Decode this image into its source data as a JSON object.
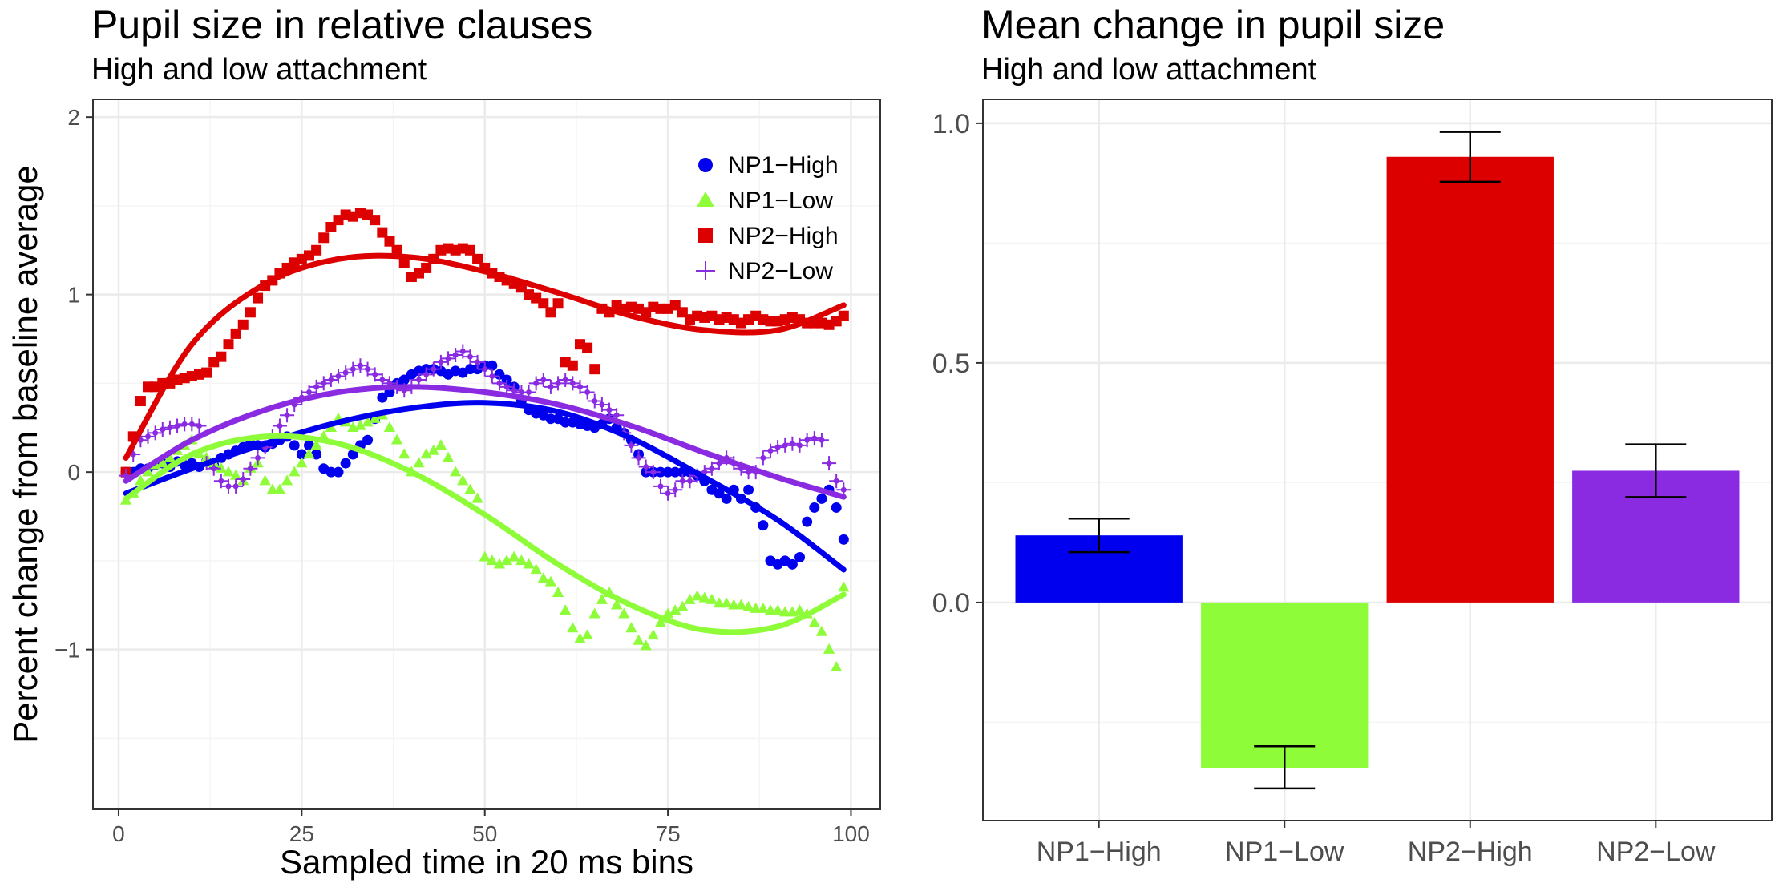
{
  "colors": {
    "np1_high": "#0000ee",
    "np1_low": "#8ffc3a",
    "np2_high": "#dd0000",
    "np2_low": "#8a2be2",
    "grid_major": "#ebebeb",
    "grid_minor": "#f5f5f5",
    "panel_border": "#333333"
  },
  "chart_data": [
    {
      "type": "scatter",
      "title": "Pupil size in relative clauses",
      "subtitle": "High and low attachment",
      "xlabel": "Sampled time in 20 ms bins",
      "ylabel": "Percent change from baseline average",
      "xlim": [
        -3.5,
        104
      ],
      "ylim": [
        -1.9,
        2.1
      ],
      "xticks": [
        "0",
        "25",
        "50",
        "75",
        "100"
      ],
      "yticks": [
        "-1",
        "0",
        "1",
        "2"
      ],
      "grid": true,
      "legend_position": "top-right",
      "series": [
        {
          "name": "NP1−High",
          "color_key": "np1_high",
          "shape": "circle",
          "x": [
            1,
            2,
            3,
            4,
            5,
            6,
            7,
            8,
            9,
            10,
            11,
            12,
            13,
            14,
            15,
            16,
            17,
            18,
            19,
            20,
            21,
            22,
            23,
            24,
            25,
            26,
            27,
            28,
            29,
            30,
            31,
            32,
            33,
            34,
            35,
            36,
            37,
            38,
            39,
            40,
            41,
            42,
            43,
            44,
            45,
            46,
            47,
            48,
            49,
            50,
            51,
            52,
            53,
            54,
            55,
            56,
            57,
            58,
            59,
            60,
            61,
            62,
            63,
            64,
            65,
            66,
            67,
            68,
            69,
            70,
            71,
            72,
            73,
            74,
            75,
            76,
            77,
            78,
            79,
            80,
            81,
            82,
            83,
            84,
            85,
            86,
            87,
            88,
            89,
            90,
            91,
            92,
            93,
            94,
            95,
            96,
            97,
            98,
            99
          ],
          "y": [
            0.0,
            0.0,
            0.02,
            0.02,
            0.04,
            0.05,
            0.03,
            0.06,
            0.04,
            0.05,
            0.03,
            0.06,
            0.04,
            0.08,
            0.1,
            0.12,
            0.14,
            0.16,
            0.15,
            0.14,
            0.16,
            0.18,
            0.2,
            0.15,
            0.1,
            0.15,
            0.1,
            0.02,
            0.0,
            0.0,
            0.05,
            0.1,
            0.15,
            0.18,
            0.3,
            0.42,
            0.45,
            0.5,
            0.52,
            0.55,
            0.57,
            0.58,
            0.58,
            0.57,
            0.55,
            0.57,
            0.56,
            0.58,
            0.58,
            0.6,
            0.6,
            0.55,
            0.52,
            0.48,
            0.4,
            0.35,
            0.33,
            0.32,
            0.3,
            0.3,
            0.28,
            0.28,
            0.27,
            0.26,
            0.25,
            0.27,
            0.3,
            0.25,
            0.22,
            0.18,
            0.1,
            0.0,
            0.0,
            0.0,
            0.0,
            0.0,
            0.0,
            0.0,
            -0.02,
            -0.05,
            -0.1,
            -0.12,
            -0.15,
            -0.1,
            -0.15,
            -0.1,
            -0.2,
            -0.3,
            -0.5,
            -0.52,
            -0.5,
            -0.52,
            -0.48,
            -0.28,
            -0.2,
            -0.15,
            -0.1,
            -0.2,
            -0.38
          ],
          "fit_x": [
            1,
            10,
            20,
            30,
            40,
            50,
            60,
            70,
            80,
            90,
            99
          ],
          "fit_y": [
            -0.12,
            0.02,
            0.16,
            0.28,
            0.36,
            0.39,
            0.34,
            0.19,
            -0.03,
            -0.27,
            -0.55
          ]
        },
        {
          "name": "NP1−Low",
          "color_key": "np1_low",
          "shape": "triangle",
          "x": [
            1,
            2,
            3,
            4,
            5,
            6,
            7,
            8,
            9,
            10,
            11,
            12,
            13,
            14,
            15,
            16,
            17,
            18,
            19,
            20,
            21,
            22,
            23,
            24,
            25,
            26,
            27,
            28,
            29,
            30,
            31,
            32,
            33,
            34,
            35,
            36,
            37,
            38,
            39,
            40,
            41,
            42,
            43,
            44,
            45,
            46,
            47,
            48,
            49,
            50,
            51,
            52,
            53,
            54,
            55,
            56,
            57,
            58,
            59,
            60,
            61,
            62,
            63,
            64,
            65,
            66,
            67,
            68,
            69,
            70,
            71,
            72,
            73,
            74,
            75,
            76,
            77,
            78,
            79,
            80,
            81,
            82,
            83,
            84,
            85,
            86,
            87,
            88,
            89,
            90,
            91,
            92,
            93,
            94,
            95,
            96,
            97,
            98,
            99
          ],
          "y": [
            -0.16,
            -0.12,
            -0.05,
            0.0,
            0.04,
            0.05,
            0.08,
            0.12,
            0.15,
            0.18,
            0.1,
            0.08,
            0.05,
            0.02,
            0.0,
            -0.02,
            -0.05,
            0.02,
            0.05,
            -0.05,
            -0.1,
            -0.1,
            -0.05,
            0.0,
            0.05,
            0.1,
            0.15,
            0.2,
            0.25,
            0.3,
            0.28,
            0.25,
            0.26,
            0.28,
            0.3,
            0.32,
            0.25,
            0.18,
            0.1,
            0.0,
            0.05,
            0.1,
            0.12,
            0.15,
            0.08,
            0.0,
            -0.05,
            -0.1,
            -0.15,
            -0.48,
            -0.5,
            -0.52,
            -0.5,
            -0.48,
            -0.5,
            -0.52,
            -0.55,
            -0.6,
            -0.62,
            -0.68,
            -0.78,
            -0.88,
            -0.94,
            -0.92,
            -0.8,
            -0.72,
            -0.68,
            -0.75,
            -0.8,
            -0.88,
            -0.95,
            -0.98,
            -0.92,
            -0.85,
            -0.8,
            -0.78,
            -0.76,
            -0.72,
            -0.7,
            -0.71,
            -0.72,
            -0.74,
            -0.74,
            -0.75,
            -0.75,
            -0.76,
            -0.77,
            -0.77,
            -0.78,
            -0.78,
            -0.79,
            -0.79,
            -0.78,
            -0.8,
            -0.85,
            -0.9,
            -1.0,
            -1.1,
            -0.65
          ],
          "fit_x": [
            1,
            10,
            20,
            30,
            40,
            50,
            60,
            70,
            80,
            90,
            99
          ],
          "fit_y": [
            -0.15,
            0.1,
            0.2,
            0.16,
            0.0,
            -0.24,
            -0.52,
            -0.75,
            -0.89,
            -0.87,
            -0.69
          ]
        },
        {
          "name": "NP2−High",
          "color_key": "np2_high",
          "shape": "square",
          "x": [
            1,
            2,
            3,
            4,
            5,
            6,
            7,
            8,
            9,
            10,
            11,
            12,
            13,
            14,
            15,
            16,
            17,
            18,
            19,
            20,
            21,
            22,
            23,
            24,
            25,
            26,
            27,
            28,
            29,
            30,
            31,
            32,
            33,
            34,
            35,
            36,
            37,
            38,
            39,
            40,
            41,
            42,
            43,
            44,
            45,
            46,
            47,
            48,
            49,
            50,
            51,
            52,
            53,
            54,
            55,
            56,
            57,
            58,
            59,
            60,
            61,
            62,
            63,
            64,
            65,
            66,
            67,
            68,
            69,
            70,
            71,
            72,
            73,
            74,
            75,
            76,
            77,
            78,
            79,
            80,
            81,
            82,
            83,
            84,
            85,
            86,
            87,
            88,
            89,
            90,
            91,
            92,
            93,
            94,
            95,
            96,
            97,
            98,
            99
          ],
          "y": [
            0.0,
            0.2,
            0.4,
            0.48,
            0.48,
            0.5,
            0.5,
            0.52,
            0.53,
            0.54,
            0.55,
            0.56,
            0.62,
            0.65,
            0.72,
            0.78,
            0.83,
            0.9,
            0.98,
            1.05,
            1.08,
            1.12,
            1.15,
            1.18,
            1.2,
            1.22,
            1.25,
            1.32,
            1.38,
            1.42,
            1.45,
            1.44,
            1.46,
            1.45,
            1.42,
            1.35,
            1.3,
            1.25,
            1.18,
            1.1,
            1.12,
            1.15,
            1.2,
            1.25,
            1.26,
            1.25,
            1.26,
            1.25,
            1.2,
            1.15,
            1.12,
            1.1,
            1.08,
            1.06,
            1.04,
            1.0,
            0.98,
            0.95,
            0.9,
            0.95,
            0.62,
            0.6,
            0.72,
            0.7,
            0.58,
            0.92,
            0.9,
            0.94,
            0.92,
            0.93,
            0.92,
            0.9,
            0.93,
            0.92,
            0.92,
            0.94,
            0.9,
            0.86,
            0.88,
            0.87,
            0.88,
            0.86,
            0.87,
            0.86,
            0.84,
            0.86,
            0.88,
            0.86,
            0.85,
            0.85,
            0.86,
            0.87,
            0.86,
            0.84,
            0.84,
            0.84,
            0.83,
            0.85,
            0.88
          ],
          "fit_x": [
            1,
            10,
            20,
            30,
            40,
            50,
            60,
            70,
            80,
            90,
            99
          ],
          "fit_y": [
            0.08,
            0.72,
            1.06,
            1.2,
            1.21,
            1.13,
            1.01,
            0.88,
            0.8,
            0.8,
            0.94
          ]
        },
        {
          "name": "NP2−Low",
          "color_key": "np2_low",
          "shape": "plus",
          "x": [
            1,
            2,
            3,
            4,
            5,
            6,
            7,
            8,
            9,
            10,
            11,
            12,
            13,
            14,
            15,
            16,
            17,
            18,
            19,
            20,
            21,
            22,
            23,
            24,
            25,
            26,
            27,
            28,
            29,
            30,
            31,
            32,
            33,
            34,
            35,
            36,
            37,
            38,
            39,
            40,
            41,
            42,
            43,
            44,
            45,
            46,
            47,
            48,
            49,
            50,
            51,
            52,
            53,
            54,
            55,
            56,
            57,
            58,
            59,
            60,
            61,
            62,
            63,
            64,
            65,
            66,
            67,
            68,
            69,
            70,
            71,
            72,
            73,
            74,
            75,
            76,
            77,
            78,
            79,
            80,
            81,
            82,
            83,
            84,
            85,
            86,
            87,
            88,
            89,
            90,
            91,
            92,
            93,
            94,
            95,
            96,
            97,
            98,
            99
          ],
          "y": [
            -0.02,
            0.1,
            0.18,
            0.2,
            0.22,
            0.24,
            0.25,
            0.26,
            0.27,
            0.27,
            0.26,
            0.05,
            0.02,
            -0.05,
            -0.08,
            -0.08,
            -0.04,
            0.02,
            0.08,
            0.14,
            0.2,
            0.26,
            0.32,
            0.38,
            0.42,
            0.45,
            0.48,
            0.5,
            0.52,
            0.54,
            0.56,
            0.58,
            0.6,
            0.58,
            0.55,
            0.52,
            0.5,
            0.48,
            0.46,
            0.48,
            0.52,
            0.55,
            0.58,
            0.62,
            0.64,
            0.66,
            0.68,
            0.65,
            0.62,
            0.58,
            0.54,
            0.5,
            0.48,
            0.46,
            0.45,
            0.45,
            0.5,
            0.52,
            0.48,
            0.5,
            0.52,
            0.5,
            0.48,
            0.45,
            0.4,
            0.38,
            0.35,
            0.32,
            0.22,
            0.15,
            0.08,
            0.03,
            0.0,
            -0.08,
            -0.12,
            -0.1,
            -0.05,
            -0.05,
            -0.02,
            0.0,
            0.02,
            0.05,
            0.08,
            0.05,
            0.02,
            0.0,
            0.0,
            0.08,
            0.12,
            0.14,
            0.15,
            0.16,
            0.15,
            0.18,
            0.19,
            0.18,
            0.05,
            -0.05,
            -0.1
          ],
          "fit_x": [
            1,
            10,
            20,
            30,
            40,
            50,
            60,
            70,
            80,
            90,
            99
          ],
          "fit_y": [
            -0.05,
            0.18,
            0.35,
            0.45,
            0.48,
            0.45,
            0.38,
            0.26,
            0.11,
            -0.03,
            -0.14
          ]
        }
      ]
    },
    {
      "type": "bar",
      "title": "Mean change in pupil size",
      "subtitle": "High and low attachment",
      "xlabel": "",
      "ylabel": "",
      "categories": [
        "NP1−High",
        "NP1−Low",
        "NP2−High",
        "NP2−Low"
      ],
      "values": [
        0.14,
        -0.345,
        0.93,
        0.275
      ],
      "error_low": [
        0.105,
        -0.388,
        0.878,
        0.22
      ],
      "error_high": [
        0.175,
        -0.3,
        0.982,
        0.33
      ],
      "color_keys": [
        "np1_high",
        "np1_low",
        "np2_high",
        "np2_low"
      ],
      "ylim": [
        -0.455,
        1.05
      ],
      "yticks": [
        "0.0",
        "0.5",
        "1.0"
      ],
      "grid": true
    }
  ]
}
